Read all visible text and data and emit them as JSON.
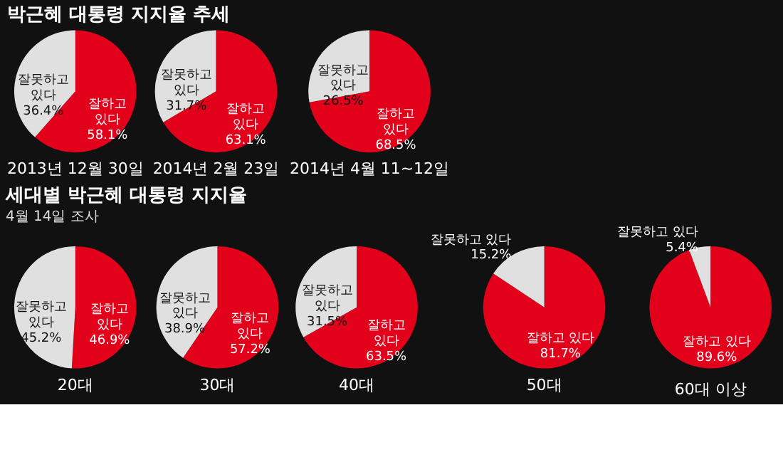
{
  "chart_data": [
    {
      "type": "pie",
      "title": "박근혜 대통령 지지율 추세",
      "xlabel": "2013년 12월 30일",
      "categories": [
        "잘하고 있다",
        "잘못하고 있다"
      ],
      "values": [
        58.1,
        36.4
      ],
      "value_labels": [
        "58.1%",
        "36.4%"
      ],
      "colors": [
        "#e2001a",
        "#e0e0e0"
      ]
    },
    {
      "type": "pie",
      "xlabel": "2014년 2월 23일",
      "categories": [
        "잘하고 있다",
        "잘못하고 있다"
      ],
      "values": [
        63.1,
        31.7
      ],
      "value_labels": [
        "63.1%",
        "31.7%"
      ],
      "colors": [
        "#e2001a",
        "#e0e0e0"
      ]
    },
    {
      "type": "pie",
      "xlabel": "2014년 4월 11~12일",
      "categories": [
        "잘하고 있다",
        "잘못하고 있다"
      ],
      "values": [
        68.5,
        26.5
      ],
      "value_labels": [
        "68.5%",
        "26.5%"
      ],
      "colors": [
        "#e2001a",
        "#e0e0e0"
      ]
    },
    {
      "type": "pie",
      "title": "세대별 박근혜 대통령 지지율",
      "subtitle": "4월 14일 조사",
      "xlabel": "20대",
      "categories": [
        "잘하고 있다",
        "잘못하고 있다"
      ],
      "values": [
        46.9,
        45.2
      ],
      "value_labels": [
        "46.9%",
        "45.2%"
      ],
      "colors": [
        "#e2001a",
        "#e0e0e0"
      ]
    },
    {
      "type": "pie",
      "xlabel": "30대",
      "categories": [
        "잘하고 있다",
        "잘못하고 있다"
      ],
      "values": [
        57.2,
        38.9
      ],
      "value_labels": [
        "57.2%",
        "38.9%"
      ],
      "colors": [
        "#e2001a",
        "#e0e0e0"
      ]
    },
    {
      "type": "pie",
      "xlabel": "40대",
      "categories": [
        "잘하고 있다",
        "잘못하고 있다"
      ],
      "values": [
        63.5,
        31.5
      ],
      "value_labels": [
        "63.5%",
        "31.5%"
      ],
      "colors": [
        "#e2001a",
        "#e0e0e0"
      ]
    },
    {
      "type": "pie",
      "xlabel": "50대",
      "categories": [
        "잘하고 있다",
        "잘못하고 있다"
      ],
      "values": [
        81.7,
        15.2
      ],
      "value_labels": [
        "81.7%",
        "15.2%"
      ],
      "colors": [
        "#e2001a",
        "#e0e0e0"
      ]
    },
    {
      "type": "pie",
      "xlabel": "60대 이상",
      "categories": [
        "잘하고 있다",
        "잘못하고 있다"
      ],
      "values": [
        89.6,
        5.4
      ],
      "value_labels": [
        "89.6%",
        "5.4%"
      ],
      "colors": [
        "#e2001a",
        "#e0e0e0"
      ]
    }
  ]
}
